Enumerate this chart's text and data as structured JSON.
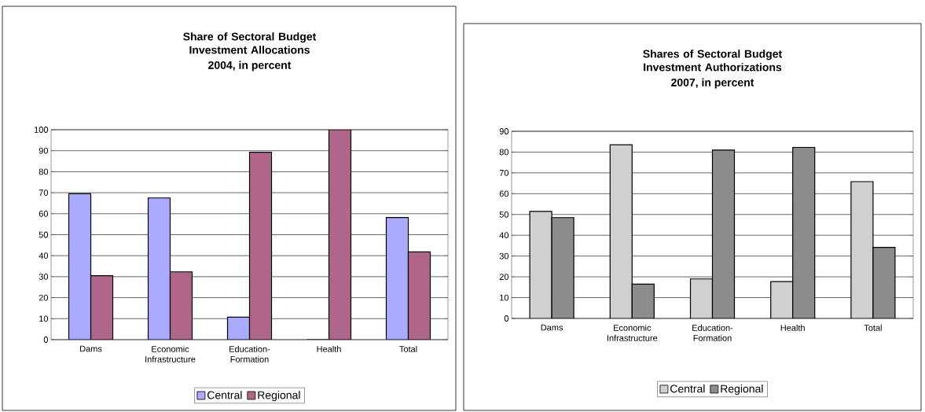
{
  "chart_data": [
    {
      "type": "bar",
      "title": "Share of Sectoral Budget Investment Allocations",
      "subtitle": "2004, in percent",
      "categories": [
        "Dams",
        "Economic Infrastructure",
        "Education-Formation",
        "Health",
        "Total"
      ],
      "series": [
        {
          "name": "Central",
          "color": "#aaaaff",
          "values": [
            69.5,
            67.5,
            10.7,
            0,
            58.2
          ]
        },
        {
          "name": "Regional",
          "color": "#b0668a",
          "values": [
            30.5,
            32.3,
            89.3,
            100,
            41.8
          ]
        }
      ],
      "ylim": [
        0,
        100
      ],
      "yticks": [
        0,
        10,
        20,
        30,
        40,
        50,
        60,
        70,
        80,
        90,
        100
      ],
      "grid": "y",
      "legend": "bottom"
    },
    {
      "type": "bar",
      "title": "Shares of Sectoral Budget Investment Authorizations",
      "subtitle": "2007, in percent",
      "categories": [
        "Dams",
        "Economic Infrastructure",
        "Education-Formation",
        "Health",
        "Total"
      ],
      "series": [
        {
          "name": "Central",
          "color": "#d0d0d0",
          "values": [
            51.5,
            83.5,
            19,
            17.7,
            65.8
          ]
        },
        {
          "name": "Regional",
          "color": "#8c8c8c",
          "values": [
            48.5,
            16.5,
            81,
            82.3,
            34.2
          ]
        }
      ],
      "ylim": [
        0,
        90
      ],
      "yticks": [
        0,
        10,
        20,
        30,
        40,
        50,
        60,
        70,
        80,
        90
      ],
      "grid": "y",
      "legend": "bottom"
    }
  ]
}
